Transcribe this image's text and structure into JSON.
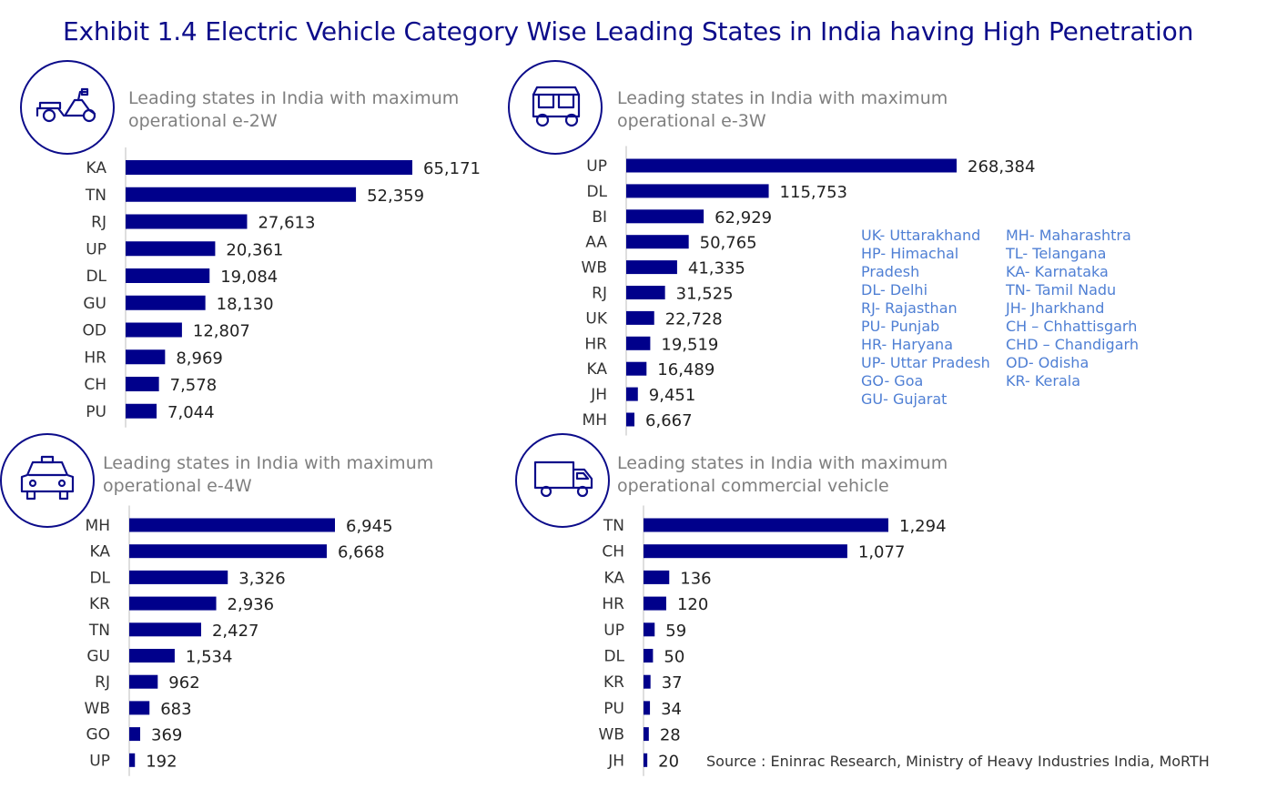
{
  "title": "Exhibit 1.4 Electric Vehicle Category Wise Leading States in India having High Penetration",
  "source": "Source : Eninrac Research, Ministry of Heavy Industries India, MoRTH",
  "colors": {
    "bar": "#00008b",
    "title": "#0c0c8a",
    "subtitle": "#7f7f7f",
    "legend": "#4f7fd4",
    "axis": "#c8c8c8"
  },
  "panels": [
    {
      "icon": "scooter-icon",
      "subtitle_line1": "Leading states in India with maximum",
      "subtitle_line2": "operational e-2W"
    },
    {
      "icon": "auto-rickshaw-icon",
      "subtitle_line1": "Leading states in India with maximum",
      "subtitle_line2": "operational e-3W"
    },
    {
      "icon": "taxi-car-icon",
      "subtitle_line1": "Leading states in India with maximum",
      "subtitle_line2": "operational e-4W"
    },
    {
      "icon": "truck-icon",
      "subtitle_line1": "Leading states in India with maximum",
      "subtitle_line2": "operational commercial vehicle"
    }
  ],
  "legend": {
    "col1": [
      "UK- Uttarakhand",
      "HP- Himachal",
      "Pradesh",
      "DL- Delhi",
      "RJ- Rajasthan",
      "PU- Punjab",
      "HR- Haryana",
      "UP- Uttar Pradesh",
      "GO- Goa",
      "GU- Gujarat"
    ],
    "col2": [
      "MH- Maharashtra",
      "TL- Telangana",
      "KA- Karnataka",
      "TN- Tamil Nadu",
      "JH- Jharkhand",
      "CH – Chhattisgarh",
      "CHD – Chandigarh",
      "OD- Odisha",
      "KR- Kerala"
    ]
  },
  "chart_data": [
    {
      "type": "bar",
      "orientation": "horizontal",
      "categories": [
        "KA",
        "TN",
        "RJ",
        "UP",
        "DL",
        "GU",
        "OD",
        "HR",
        "CH",
        "PU"
      ],
      "values": [
        65171,
        52359,
        27613,
        20361,
        19084,
        18130,
        12807,
        8969,
        7578,
        7044
      ],
      "labels": [
        "65,171",
        "52,359",
        "27,613",
        "20,361",
        "19,084",
        "18,130",
        "12,807",
        "8,969",
        "7,578",
        "7,044"
      ]
    },
    {
      "type": "bar",
      "orientation": "horizontal",
      "categories": [
        "UP",
        "DL",
        "BI",
        "AA",
        "WB",
        "RJ",
        "UK",
        "HR",
        "KA",
        "JH",
        "MH"
      ],
      "values": [
        268384,
        115753,
        62929,
        50765,
        41335,
        31525,
        22728,
        19519,
        16489,
        9451,
        6667
      ],
      "labels": [
        "268,384",
        "115,753",
        "62,929",
        "50,765",
        "41,335",
        "31,525",
        "22,728",
        "19,519",
        "16,489",
        "9,451",
        "6,667"
      ]
    },
    {
      "type": "bar",
      "orientation": "horizontal",
      "categories": [
        "MH",
        "KA",
        "DL",
        "KR",
        "TN",
        "GU",
        "RJ",
        "WB",
        "GO",
        "UP"
      ],
      "values": [
        6945,
        6668,
        3326,
        2936,
        2427,
        1534,
        962,
        683,
        369,
        192
      ],
      "labels": [
        "6,945",
        "6,668",
        "3,326",
        "2,936",
        "2,427",
        "1,534",
        "962",
        "683",
        "369",
        "192"
      ]
    },
    {
      "type": "bar",
      "orientation": "horizontal",
      "categories": [
        "TN",
        "CH",
        "KA",
        "HR",
        "UP",
        "DL",
        "KR",
        "PU",
        "WB",
        "JH"
      ],
      "values": [
        1294,
        1077,
        136,
        120,
        59,
        50,
        37,
        34,
        28,
        20
      ],
      "labels": [
        "1,294",
        "1,077",
        "136",
        "120",
        "59",
        "50",
        "37",
        "34",
        "28",
        "20"
      ]
    }
  ]
}
